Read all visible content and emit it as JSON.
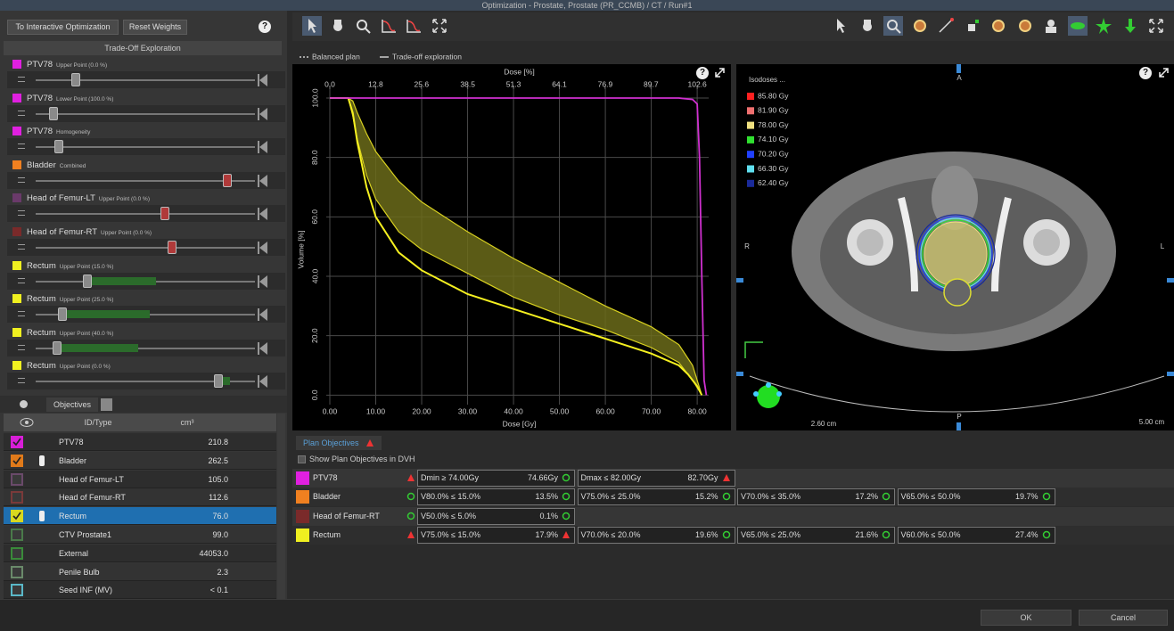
{
  "window": {
    "title": "Optimization - Prostate, Prostate (PR_CCMB) / CT / Run#1"
  },
  "help": "?",
  "left_panel": {
    "buttons": [
      "To Interactive Optimization",
      "Reset Weights"
    ],
    "section": "Trade-Off Exploration",
    "sliders": [
      {
        "name": "PTV78",
        "detail": "Upper Point (0.0 %)",
        "color": "#e020e0"
      },
      {
        "name": "PTV78",
        "detail": "Lower Point (100.0 %)",
        "color": "#e020e0"
      },
      {
        "name": "PTV78",
        "detail": "Homogeneity",
        "color": "#e020e0"
      },
      {
        "name": "Bladder",
        "detail": "Combined",
        "color": "#f08020"
      },
      {
        "name": "Head of Femur-LT",
        "detail": "Upper Point (0.0 %)",
        "color": "#6a3a6a"
      },
      {
        "name": "Head of Femur-RT",
        "detail": "Upper Point (0.0 %)",
        "color": "#7a2a2a"
      },
      {
        "name": "Rectum",
        "detail": "Upper Point (15.0 %)",
        "color": "#f0f020"
      },
      {
        "name": "Rectum",
        "detail": "Upper Point (25.0 %)",
        "color": "#f0f020"
      },
      {
        "name": "Rectum",
        "detail": "Upper Point (40.0 %)",
        "color": "#f0f020"
      },
      {
        "name": "Rectum",
        "detail": "Upper Point (0.0 %)",
        "color": "#f0f020"
      }
    ]
  },
  "objectives_list": {
    "tab": "Objectives",
    "columns": [
      "ID/Type",
      "cm³"
    ],
    "rows": [
      {
        "name": "PTV78",
        "volume": "210.8",
        "color": "#d81ed8",
        "checked": true
      },
      {
        "name": "Bladder",
        "volume": "262.5",
        "color": "#e07a1a",
        "checked": true
      },
      {
        "name": "Head of Femur-LT",
        "volume": "105.0",
        "color": "#6a4a6a",
        "checked": false
      },
      {
        "name": "Head of Femur-RT",
        "volume": "112.6",
        "color": "#7a3a3a",
        "checked": false
      },
      {
        "name": "Rectum",
        "volume": "76.0",
        "color": "#d8d820",
        "checked": true,
        "selected": true
      },
      {
        "name": "CTV Prostate1",
        "volume": "99.0",
        "color": "#4a7a4a",
        "checked": false
      },
      {
        "name": "External",
        "volume": "44053.0",
        "color": "#3a8a3a",
        "checked": false
      },
      {
        "name": "Penile Bulb",
        "volume": "2.3",
        "color": "#6a8a6a",
        "checked": false
      },
      {
        "name": "Seed INF (MV)",
        "volume": "< 0.1",
        "color": "#5ab8c8",
        "checked": false
      }
    ]
  },
  "chart_data": {
    "type": "line",
    "x2label": "Dose [%]",
    "xlabel": "Dose [Gy]",
    "ylabel": "Volume [%]",
    "grid": true,
    "xlim": [
      0,
      82.5
    ],
    "x2lim": [
      0,
      105.8
    ],
    "ylim": [
      -2,
      103
    ],
    "xticks": [
      {
        "value": 0,
        "label": "0.00"
      },
      {
        "value": 10,
        "label": "10.00"
      },
      {
        "value": 20,
        "label": "20.00"
      },
      {
        "value": 30,
        "label": "30.00"
      },
      {
        "value": 40,
        "label": "40.00"
      },
      {
        "value": 50,
        "label": "50.00"
      },
      {
        "value": 60,
        "label": "60.00"
      },
      {
        "value": 70,
        "label": "70.00"
      },
      {
        "value": 80,
        "label": "80.00"
      }
    ],
    "x2ticks": [
      {
        "value": 0,
        "label": "0.0"
      },
      12.8,
      25.6,
      38.5,
      51.3,
      64.1,
      76.9,
      89.7,
      102.6
    ],
    "yticks": [
      {
        "value": 0,
        "label": "0.0"
      },
      {
        "value": 20,
        "label": "20.0"
      },
      {
        "value": 40,
        "label": "40.0"
      },
      {
        "value": 60,
        "label": "60.0"
      },
      {
        "value": 80,
        "label": "80.0"
      },
      {
        "value": 100,
        "label": "100.0"
      }
    ],
    "series": [
      {
        "name": "Balanced plan",
        "color": "#f5f020",
        "x": [
          0,
          4,
          5,
          6,
          8,
          10,
          15,
          20,
          30,
          40,
          50,
          60,
          70,
          76,
          78,
          80,
          81
        ],
        "values": [
          100,
          100,
          95,
          85,
          70,
          60,
          48,
          42,
          34,
          29,
          24,
          19,
          14,
          10,
          7,
          3,
          0
        ]
      },
      {
        "name": "Trade-off exploration",
        "color": "#d8d020",
        "fill": "#6b6b1a",
        "x": [
          0,
          4,
          5,
          6,
          8,
          10,
          15,
          20,
          30,
          40,
          50,
          60,
          70,
          76,
          79,
          81
        ],
        "values": [
          100,
          100,
          99,
          95,
          88,
          82,
          72,
          65,
          55,
          46,
          38,
          30,
          23,
          17,
          10,
          0
        ],
        "values_low": [
          100,
          100,
          94,
          86,
          74,
          66,
          55,
          49,
          41,
          33,
          27,
          22,
          16,
          11,
          5,
          0
        ]
      }
    ],
    "curves": [
      {
        "color": "#d030d0",
        "x": [
          0,
          76,
          79,
          80,
          80.5,
          81,
          81.5,
          82
        ],
        "values": [
          100,
          100,
          99.5,
          98,
          80,
          40,
          5,
          0
        ]
      }
    ]
  },
  "image_view": {
    "isodose_title": "Isodoses ...",
    "isodoses": [
      {
        "label": "85.80 Gy",
        "color": "#ff2020"
      },
      {
        "label": "81.90 Gy",
        "color": "#f07070"
      },
      {
        "label": "78.00 Gy",
        "color": "#f0e080"
      },
      {
        "label": "74.10 Gy",
        "color": "#30e030"
      },
      {
        "label": "70.20 Gy",
        "color": "#2040ff"
      },
      {
        "label": "66.30 Gy",
        "color": "#60e0f0"
      },
      {
        "label": "62.40 Gy",
        "color": "#1a2a9a"
      }
    ],
    "orientation": [
      "A",
      "R",
      "L",
      "P"
    ],
    "scale_labels": [
      "2.60 cm",
      "5.00 cm"
    ]
  },
  "plan_objectives": {
    "tab": "Plan Objectives",
    "show_in_dvh": "Show Plan Objectives in DVH",
    "rows": [
      {
        "structure": "PTV78",
        "color": "#e020e0",
        "status": "fail",
        "objectives": [
          {
            "criterion": "Dmin ≥ 74.00Gy",
            "result": "74.66Gy",
            "status": "pass"
          },
          {
            "criterion": "Dmax ≤ 82.00Gy",
            "result": "82.70Gy",
            "status": "fail"
          }
        ]
      },
      {
        "structure": "Bladder",
        "color": "#f08020",
        "status": "pass",
        "objectives": [
          {
            "criterion": "V80.0% ≤ 15.0%",
            "result": "13.5%",
            "status": "pass"
          },
          {
            "criterion": "V75.0% ≤ 25.0%",
            "result": "15.2%",
            "status": "pass"
          },
          {
            "criterion": "V70.0% ≤ 35.0%",
            "result": "17.2%",
            "status": "pass"
          },
          {
            "criterion": "V65.0% ≤ 50.0%",
            "result": "19.7%",
            "status": "pass"
          }
        ]
      },
      {
        "structure": "Head of Femur-RT",
        "color": "#7a2a2a",
        "status": "pass",
        "objectives": [
          {
            "criterion": "V50.0% ≤ 5.0%",
            "result": "0.1%",
            "status": "pass"
          }
        ]
      },
      {
        "structure": "Rectum",
        "color": "#f0f020",
        "status": "fail",
        "objectives": [
          {
            "criterion": "V75.0% ≤ 15.0%",
            "result": "17.9%",
            "status": "fail"
          },
          {
            "criterion": "V70.0% ≤ 20.0%",
            "result": "19.6%",
            "status": "pass"
          },
          {
            "criterion": "V65.0% ≤ 25.0%",
            "result": "21.6%",
            "status": "pass"
          },
          {
            "criterion": "V60.0% ≤ 50.0%",
            "result": "27.4%",
            "status": "pass"
          }
        ]
      }
    ]
  },
  "footer": {
    "buttons": [
      "OK",
      "Cancel"
    ]
  }
}
